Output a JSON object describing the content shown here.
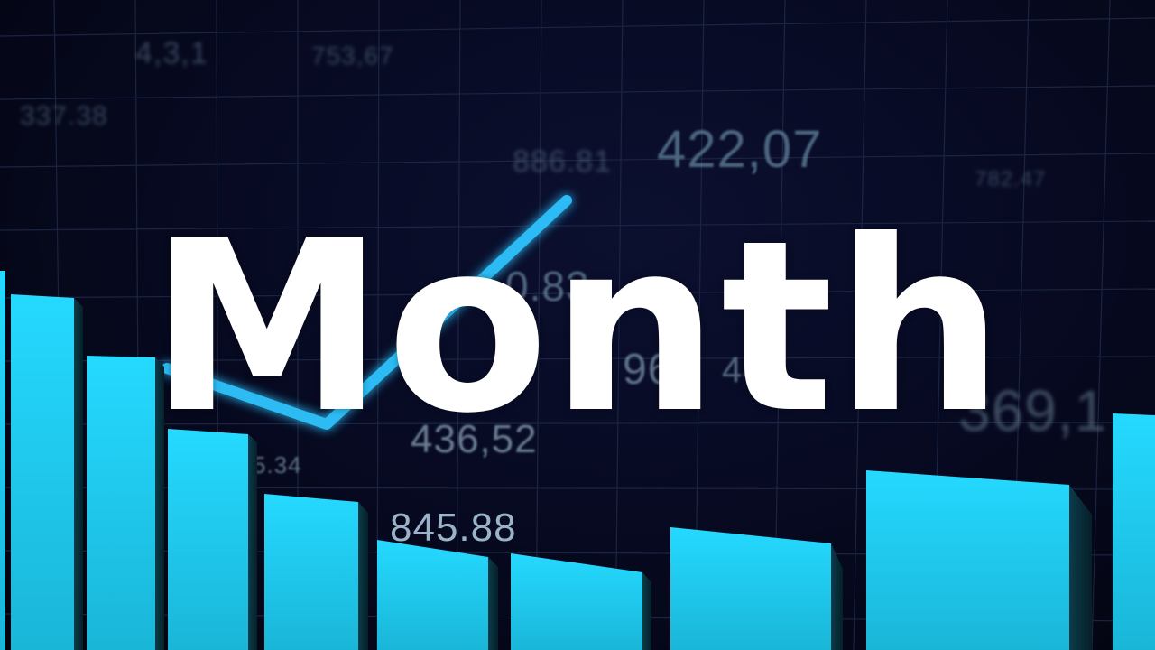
{
  "headline": "Month",
  "background_numbers": [
    "337.38",
    "4,3,1",
    "753,67",
    "886.81",
    "422,07",
    "782.47",
    "0.83",
    "96",
    "44",
    "436,52",
    "5.34",
    "845.88",
    "369,1"
  ],
  "colors": {
    "background": "#05061a",
    "grid": "#1d2846",
    "bar": "#21d8f0",
    "line": "#33c8ff",
    "headline": "#ffffff"
  }
}
